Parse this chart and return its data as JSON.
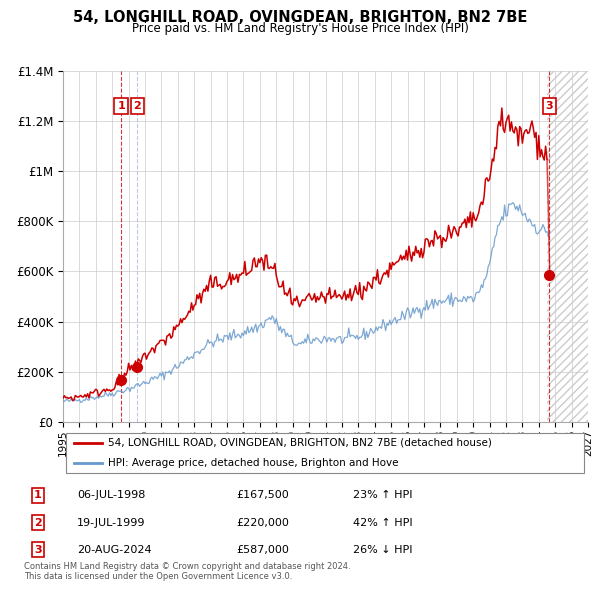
{
  "title": "54, LONGHILL ROAD, OVINGDEAN, BRIGHTON, BN2 7BE",
  "subtitle": "Price paid vs. HM Land Registry's House Price Index (HPI)",
  "legend_line1": "54, LONGHILL ROAD, OVINGDEAN, BRIGHTON, BN2 7BE (detached house)",
  "legend_line2": "HPI: Average price, detached house, Brighton and Hove",
  "copyright": "Contains HM Land Registry data © Crown copyright and database right 2024.\nThis data is licensed under the Open Government Licence v3.0.",
  "transactions": [
    {
      "num": 1,
      "date": "06-JUL-1998",
      "price": "£167,500",
      "hpi": "23% ↑ HPI",
      "year": 1998.54,
      "value": 167500
    },
    {
      "num": 2,
      "date": "19-JUL-1999",
      "price": "£220,000",
      "hpi": "42% ↑ HPI",
      "year": 1999.54,
      "value": 220000
    },
    {
      "num": 3,
      "date": "20-AUG-2024",
      "price": "£587,000",
      "hpi": "26% ↓ HPI",
      "year": 2024.63,
      "value": 587000
    }
  ],
  "hpi_color": "#6699cc",
  "price_color": "#cc0000",
  "marker_color": "#cc0000",
  "future_start": 2024.5,
  "xlim": [
    1995,
    2027
  ],
  "ylim": [
    0,
    1400000
  ],
  "yticks": [
    0,
    200000,
    400000,
    600000,
    800000,
    1000000,
    1200000,
    1400000
  ],
  "ytick_labels": [
    "£0",
    "£200K",
    "£400K",
    "£600K",
    "£800K",
    "£1M",
    "£1.2M",
    "£1.4M"
  ],
  "xticks": [
    1995,
    1996,
    1997,
    1998,
    1999,
    2000,
    2001,
    2002,
    2003,
    2004,
    2005,
    2006,
    2007,
    2008,
    2009,
    2010,
    2011,
    2012,
    2013,
    2014,
    2015,
    2016,
    2017,
    2018,
    2019,
    2020,
    2021,
    2022,
    2023,
    2024,
    2025,
    2026,
    2027
  ]
}
